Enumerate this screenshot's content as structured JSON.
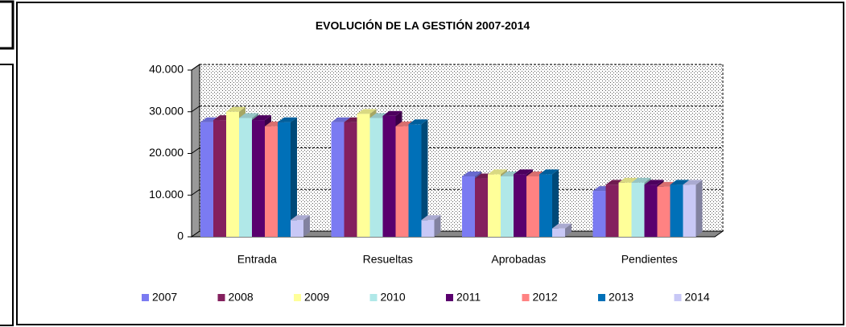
{
  "chart_data": {
    "type": "bar3d",
    "title": "EVOLUCIÓN DE LA GESTIÓN 2007-2014",
    "categories": [
      "Entrada",
      "Resueltas",
      "Aprobadas",
      "Pendientes"
    ],
    "series": [
      {
        "name": "2007",
        "color": "#7b7bf2",
        "values": [
          27500,
          27500,
          14500,
          11000
        ]
      },
      {
        "name": "2008",
        "color": "#84205e",
        "values": [
          28000,
          27500,
          14000,
          12500
        ]
      },
      {
        "name": "2009",
        "color": "#ffff99",
        "values": [
          30000,
          29500,
          15000,
          13000
        ]
      },
      {
        "name": "2010",
        "color": "#b0e8e8",
        "values": [
          28500,
          28500,
          14500,
          13000
        ]
      },
      {
        "name": "2011",
        "color": "#5a006e",
        "values": [
          28000,
          29000,
          15000,
          12500
        ]
      },
      {
        "name": "2012",
        "color": "#ff8282",
        "values": [
          26500,
          26500,
          14500,
          12000
        ]
      },
      {
        "name": "2013",
        "color": "#0070b8",
        "values": [
          27500,
          27000,
          15000,
          12500
        ]
      },
      {
        "name": "2014",
        "color": "#c8c8f6",
        "values": [
          4000,
          4000,
          2000,
          12500
        ]
      }
    ],
    "ylim": [
      0,
      40000
    ],
    "yticks": [
      0,
      {
        "value": 10000,
        "label": "10.000"
      },
      {
        "value": 20000,
        "label": "20.000"
      },
      {
        "value": 30000,
        "label": "30.000"
      },
      {
        "value": 40000,
        "label": "40.000"
      }
    ],
    "grid": true,
    "legend": "bottom"
  }
}
